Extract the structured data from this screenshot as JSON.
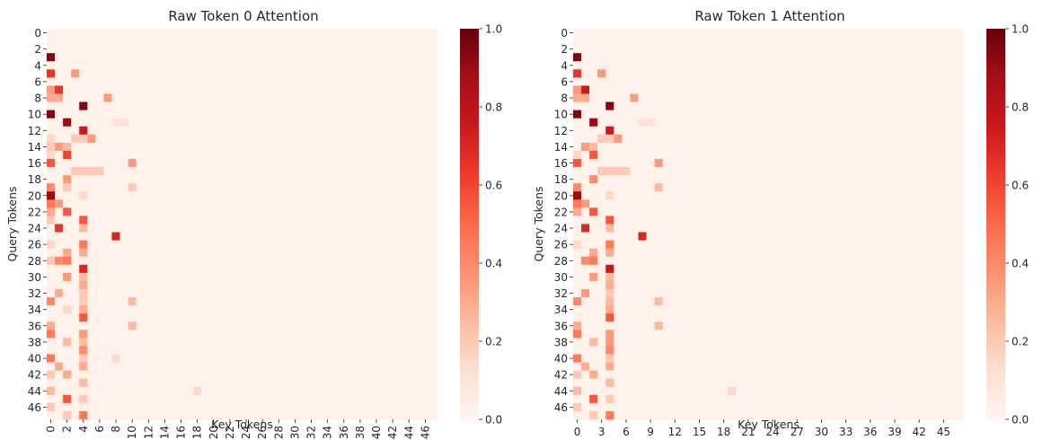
{
  "chart_data": [
    {
      "type": "heatmap",
      "title": "Raw Token 0 Attention",
      "xlabel": "Key Tokens",
      "ylabel": "Query Tokens",
      "n_rows": 48,
      "n_cols": 48,
      "x_tick_step": 2,
      "y_tick_step": 2,
      "colormap": "Reds",
      "colorbar": {
        "range": [
          0.0,
          1.0
        ],
        "ticks": [
          "0.0",
          "0.2",
          "0.4",
          "0.6",
          "0.8",
          "1.0"
        ]
      },
      "base_value": 0.02,
      "cells": [
        [
          3,
          0,
          0.95
        ],
        [
          5,
          0,
          0.65
        ],
        [
          5,
          3,
          0.35
        ],
        [
          7,
          0,
          0.35
        ],
        [
          7,
          1,
          0.65
        ],
        [
          8,
          0,
          0.3
        ],
        [
          8,
          1,
          0.3
        ],
        [
          8,
          7,
          0.35
        ],
        [
          9,
          4,
          0.95
        ],
        [
          10,
          0,
          0.95
        ],
        [
          11,
          2,
          0.9
        ],
        [
          11,
          8,
          0.1
        ],
        [
          11,
          9,
          0.12
        ],
        [
          12,
          4,
          0.75
        ],
        [
          13,
          4,
          0.2
        ],
        [
          13,
          5,
          0.35
        ],
        [
          13,
          3,
          0.2
        ],
        [
          13,
          0,
          0.15
        ],
        [
          14,
          1,
          0.35
        ],
        [
          14,
          2,
          0.25
        ],
        [
          14,
          0,
          0.2
        ],
        [
          15,
          2,
          0.6
        ],
        [
          15,
          0,
          0.15
        ],
        [
          16,
          0,
          0.55
        ],
        [
          16,
          10,
          0.35
        ],
        [
          17,
          3,
          0.2
        ],
        [
          17,
          4,
          0.2
        ],
        [
          17,
          5,
          0.2
        ],
        [
          17,
          6,
          0.2
        ],
        [
          18,
          2,
          0.35
        ],
        [
          19,
          0,
          0.4
        ],
        [
          19,
          2,
          0.2
        ],
        [
          19,
          10,
          0.2
        ],
        [
          20,
          0,
          0.9
        ],
        [
          20,
          4,
          0.15
        ],
        [
          21,
          0,
          0.45
        ],
        [
          21,
          1,
          0.35
        ],
        [
          22,
          0,
          0.3
        ],
        [
          22,
          2,
          0.55
        ],
        [
          23,
          4,
          0.55
        ],
        [
          23,
          0,
          0.2
        ],
        [
          24,
          1,
          0.65
        ],
        [
          24,
          4,
          0.25
        ],
        [
          25,
          8,
          0.7
        ],
        [
          26,
          0,
          0.15
        ],
        [
          26,
          4,
          0.45
        ],
        [
          27,
          2,
          0.3
        ],
        [
          27,
          4,
          0.3
        ],
        [
          28,
          0,
          0.2
        ],
        [
          28,
          1,
          0.4
        ],
        [
          28,
          2,
          0.45
        ],
        [
          29,
          4,
          0.7
        ],
        [
          30,
          2,
          0.35
        ],
        [
          30,
          4,
          0.25
        ],
        [
          31,
          4,
          0.3
        ],
        [
          32,
          1,
          0.3
        ],
        [
          32,
          4,
          0.2
        ],
        [
          33,
          0,
          0.4
        ],
        [
          33,
          4,
          0.2
        ],
        [
          33,
          10,
          0.25
        ],
        [
          34,
          2,
          0.15
        ],
        [
          34,
          4,
          0.3
        ],
        [
          35,
          4,
          0.55
        ],
        [
          36,
          0,
          0.3
        ],
        [
          36,
          10,
          0.25
        ],
        [
          37,
          0,
          0.45
        ],
        [
          37,
          4,
          0.35
        ],
        [
          38,
          2,
          0.25
        ],
        [
          38,
          4,
          0.25
        ],
        [
          39,
          4,
          0.4
        ],
        [
          40,
          0,
          0.45
        ],
        [
          40,
          4,
          0.2
        ],
        [
          40,
          8,
          0.15
        ],
        [
          41,
          1,
          0.3
        ],
        [
          41,
          4,
          0.3
        ],
        [
          42,
          0,
          0.2
        ],
        [
          42,
          2,
          0.3
        ],
        [
          43,
          4,
          0.25
        ],
        [
          44,
          0,
          0.25
        ],
        [
          44,
          18,
          0.15
        ],
        [
          45,
          2,
          0.55
        ],
        [
          45,
          4,
          0.2
        ],
        [
          46,
          0,
          0.2
        ],
        [
          47,
          4,
          0.45
        ],
        [
          47,
          2,
          0.2
        ]
      ]
    },
    {
      "type": "heatmap",
      "title": "Raw Token 1 Attention",
      "xlabel": "Key Tokens",
      "ylabel": "Query Tokens",
      "n_rows": 48,
      "n_cols": 48,
      "x_tick_step": 3,
      "y_tick_step": 2,
      "colormap": "Reds",
      "colorbar": {
        "range": [
          0.0,
          1.0
        ],
        "ticks": [
          "0.0",
          "0.2",
          "0.4",
          "0.6",
          "0.8",
          "1.0"
        ]
      },
      "base_value": 0.02,
      "cells": [
        [
          3,
          0,
          0.95
        ],
        [
          5,
          0,
          0.65
        ],
        [
          5,
          3,
          0.35
        ],
        [
          7,
          0,
          0.35
        ],
        [
          7,
          1,
          0.75
        ],
        [
          8,
          0,
          0.3
        ],
        [
          8,
          1,
          0.3
        ],
        [
          8,
          7,
          0.35
        ],
        [
          9,
          4,
          0.95
        ],
        [
          10,
          0,
          0.95
        ],
        [
          11,
          2,
          0.9
        ],
        [
          11,
          8,
          0.1
        ],
        [
          11,
          9,
          0.12
        ],
        [
          12,
          4,
          0.75
        ],
        [
          13,
          4,
          0.2
        ],
        [
          13,
          5,
          0.35
        ],
        [
          13,
          3,
          0.2
        ],
        [
          14,
          1,
          0.35
        ],
        [
          14,
          2,
          0.25
        ],
        [
          15,
          2,
          0.55
        ],
        [
          15,
          0,
          0.15
        ],
        [
          16,
          0,
          0.55
        ],
        [
          16,
          10,
          0.35
        ],
        [
          17,
          3,
          0.2
        ],
        [
          17,
          4,
          0.2
        ],
        [
          17,
          5,
          0.2
        ],
        [
          17,
          6,
          0.2
        ],
        [
          18,
          2,
          0.4
        ],
        [
          19,
          0,
          0.4
        ],
        [
          19,
          10,
          0.25
        ],
        [
          20,
          0,
          0.9
        ],
        [
          20,
          4,
          0.15
        ],
        [
          21,
          0,
          0.45
        ],
        [
          21,
          1,
          0.35
        ],
        [
          22,
          0,
          0.3
        ],
        [
          22,
          2,
          0.55
        ],
        [
          23,
          4,
          0.55
        ],
        [
          24,
          1,
          0.7
        ],
        [
          24,
          4,
          0.25
        ],
        [
          25,
          8,
          0.7
        ],
        [
          26,
          4,
          0.45
        ],
        [
          26,
          0,
          0.15
        ],
        [
          27,
          2,
          0.3
        ],
        [
          27,
          4,
          0.3
        ],
        [
          28,
          1,
          0.4
        ],
        [
          28,
          2,
          0.45
        ],
        [
          29,
          4,
          0.75
        ],
        [
          30,
          2,
          0.35
        ],
        [
          30,
          4,
          0.25
        ],
        [
          31,
          4,
          0.3
        ],
        [
          32,
          1,
          0.35
        ],
        [
          32,
          4,
          0.2
        ],
        [
          33,
          0,
          0.4
        ],
        [
          33,
          4,
          0.25
        ],
        [
          33,
          10,
          0.25
        ],
        [
          34,
          4,
          0.3
        ],
        [
          35,
          4,
          0.55
        ],
        [
          36,
          0,
          0.3
        ],
        [
          36,
          10,
          0.25
        ],
        [
          37,
          0,
          0.45
        ],
        [
          37,
          4,
          0.35
        ],
        [
          38,
          2,
          0.25
        ],
        [
          38,
          4,
          0.35
        ],
        [
          39,
          4,
          0.4
        ],
        [
          40,
          0,
          0.45
        ],
        [
          40,
          4,
          0.2
        ],
        [
          41,
          1,
          0.3
        ],
        [
          41,
          4,
          0.3
        ],
        [
          42,
          0,
          0.2
        ],
        [
          42,
          2,
          0.3
        ],
        [
          43,
          4,
          0.25
        ],
        [
          44,
          0,
          0.25
        ],
        [
          44,
          19,
          0.15
        ],
        [
          45,
          2,
          0.55
        ],
        [
          45,
          4,
          0.2
        ],
        [
          46,
          0,
          0.2
        ],
        [
          47,
          4,
          0.45
        ],
        [
          47,
          2,
          0.2
        ]
      ]
    }
  ]
}
